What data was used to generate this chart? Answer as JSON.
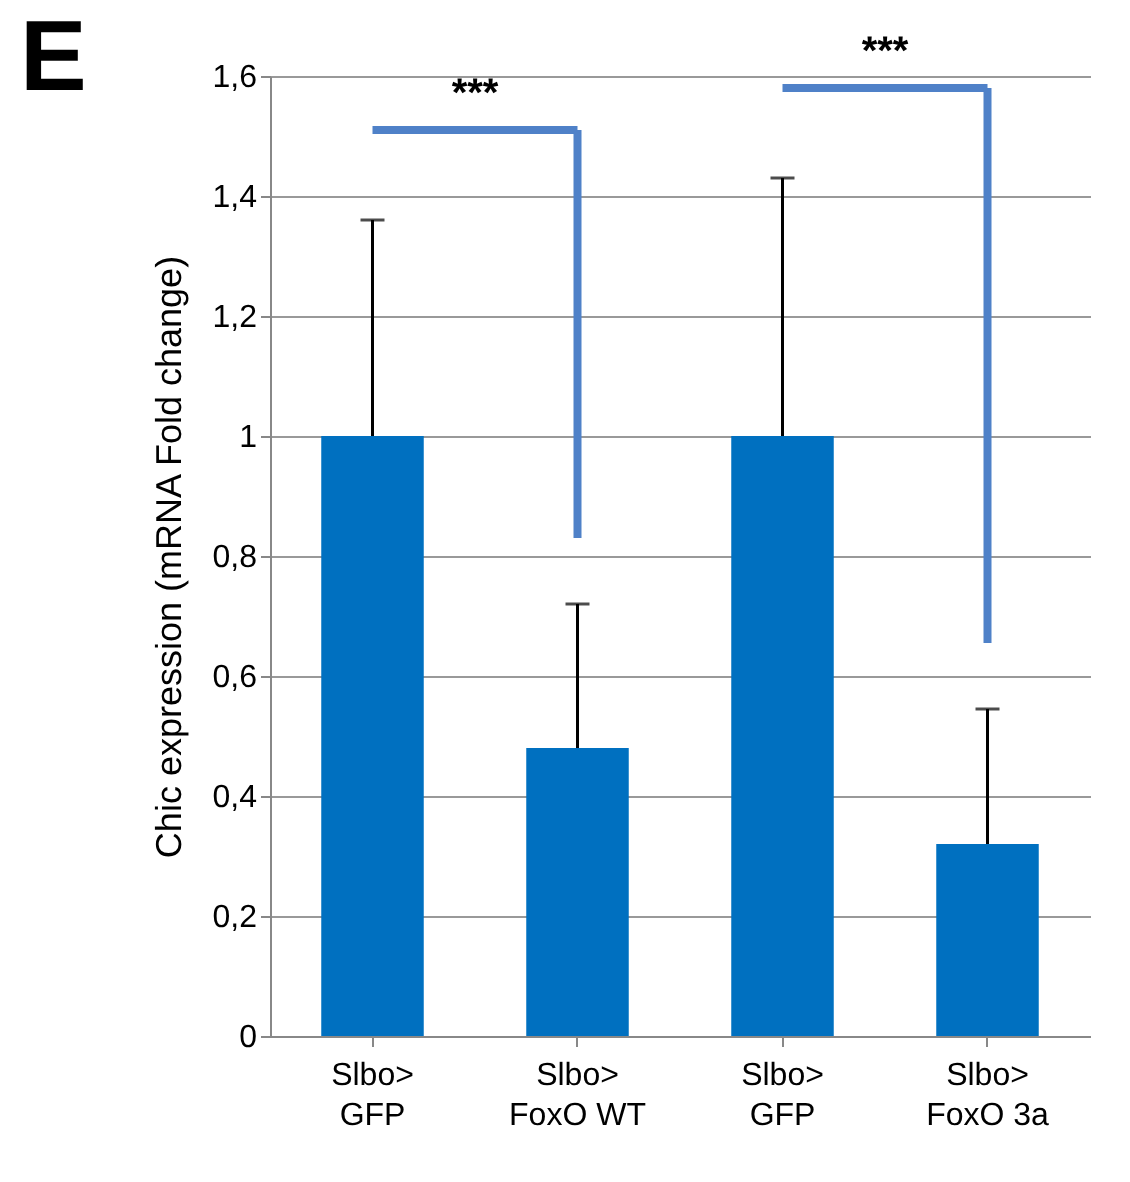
{
  "chart_data": {
    "type": "bar",
    "title": "E",
    "ylabel": "Chic expression (mRNA Fold change)",
    "categories": [
      "Slbo>\nGFP",
      "Slbo>\nFoxO WT",
      "Slbo>\nGFP",
      "Slbo>\nFoxO 3a"
    ],
    "values": [
      1,
      0.48,
      1,
      0.32
    ],
    "errors": [
      [
        1,
        1.36
      ],
      [
        0.48,
        0.72
      ],
      [
        1,
        1.43
      ],
      [
        0.32,
        0.545
      ]
    ],
    "color": "#0070c0",
    "ylim": [
      0,
      1.6
    ],
    "yticks": [
      0,
      {
        "value": 0.2,
        "label": "0,2"
      },
      {
        "value": 0.4,
        "label": "0,4"
      },
      {
        "value": 0.6,
        "label": "0,6"
      },
      {
        "value": 0.8,
        "label": "0,8"
      },
      1,
      {
        "value": 1.2,
        "label": "1,2"
      },
      {
        "value": 1.4,
        "label": "1,4"
      },
      {
        "value": 1.6,
        "label": "1,6"
      }
    ],
    "grid": "y",
    "annotations": [
      "***",
      "***"
    ]
  }
}
